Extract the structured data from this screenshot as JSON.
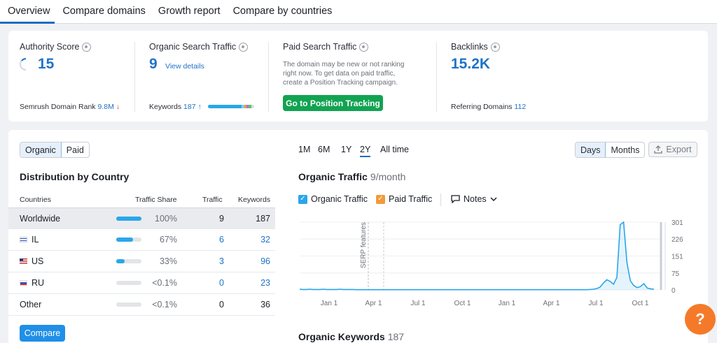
{
  "tabs": [
    {
      "label": "Overview",
      "active": true
    },
    {
      "label": "Compare domains",
      "active": false
    },
    {
      "label": "Growth report",
      "active": false
    },
    {
      "label": "Compare by countries",
      "active": false
    }
  ],
  "stats": {
    "authority": {
      "label": "Authority Score",
      "value": "15",
      "rank_label": "Semrush Domain Rank",
      "rank_value": "9.8M",
      "rank_trend": "↓"
    },
    "organic": {
      "label": "Organic Search Traffic",
      "value": "9",
      "link": "View details",
      "keywords_label": "Keywords",
      "keywords_value": "187",
      "keywords_trend": "↑"
    },
    "paid": {
      "label": "Paid Search Traffic",
      "desc_line1": "The domain may be new or not ranking",
      "desc_line2": "right now. To get data on paid traffic,",
      "desc_line3": "create a Position Tracking campaign.",
      "button": "Go to Position Tracking"
    },
    "backlinks": {
      "label": "Backlinks",
      "value": "15.2K",
      "ref_label": "Referring Domains",
      "ref_value": "112"
    }
  },
  "left": {
    "toggle": [
      "Organic",
      "Paid"
    ],
    "title": "Distribution by Country",
    "columns": [
      "Countries",
      "Traffic Share",
      "Traffic",
      "Keywords"
    ],
    "rows": [
      {
        "country": "Worldwide",
        "flag": "",
        "share_pct": 100,
        "share": "100%",
        "traffic": "9",
        "keywords": "187"
      },
      {
        "country": "IL",
        "flag": "il",
        "share_pct": 67,
        "share": "67%",
        "traffic": "6",
        "keywords": "32"
      },
      {
        "country": "US",
        "flag": "us",
        "share_pct": 33,
        "share": "33%",
        "traffic": "3",
        "keywords": "96"
      },
      {
        "country": "RU",
        "flag": "ru",
        "share_pct": 0,
        "share": "<0.1%",
        "traffic": "0",
        "keywords": "23"
      },
      {
        "country": "Other",
        "flag": "",
        "share_pct": 0,
        "share": "<0.1%",
        "traffic": "0",
        "keywords": "36"
      }
    ],
    "compare": "Compare"
  },
  "right": {
    "ranges": [
      "1M",
      "6M",
      "1Y",
      "2Y",
      "All time"
    ],
    "selected_range": "2Y",
    "granularity": [
      "Days",
      "Months"
    ],
    "export": "Export",
    "title": "Organic Traffic",
    "subtitle": "9/month",
    "legend": [
      {
        "label": "Organic Traffic",
        "color": "#2aa6ea"
      },
      {
        "label": "Paid Traffic",
        "color": "#f39a3c"
      }
    ],
    "notes": "Notes",
    "serp_label": "SERP features",
    "keywords_title": "Organic Keywords",
    "keywords_value": "187"
  },
  "chart_data": {
    "type": "line",
    "x_ticks": [
      "Jan 1",
      "Apr 1",
      "Jul 1",
      "Oct 1",
      "Jan 1",
      "Apr 1",
      "Jul 1",
      "Oct 1"
    ],
    "y_ticks": [
      0,
      75,
      151,
      226,
      301
    ],
    "ylim": [
      0,
      301
    ],
    "series": [
      {
        "name": "Organic Traffic",
        "color": "#2aa6ea",
        "values": [
          3,
          2,
          2,
          3,
          2,
          2,
          2,
          3,
          2,
          2,
          2,
          2,
          3,
          2,
          2,
          2,
          2,
          1,
          1,
          1,
          1,
          1,
          1,
          1,
          1,
          1,
          1,
          1,
          1,
          1,
          1,
          1,
          1,
          1,
          1,
          1,
          1,
          1,
          1,
          1,
          1,
          1,
          1,
          1,
          1,
          1,
          1,
          1,
          1,
          1,
          1,
          1,
          1,
          1,
          1,
          1,
          1,
          1,
          1,
          1,
          1,
          1,
          1,
          1,
          1,
          1,
          1,
          1,
          1,
          1,
          1,
          1,
          1,
          1,
          1,
          1,
          1,
          1,
          1,
          1,
          1,
          1,
          1,
          1,
          1,
          1,
          2,
          3,
          6,
          12,
          30,
          45,
          38,
          25,
          55,
          290,
          301,
          120,
          40,
          20,
          10,
          15,
          28,
          8,
          5,
          3
        ]
      }
    ]
  },
  "help": "?"
}
